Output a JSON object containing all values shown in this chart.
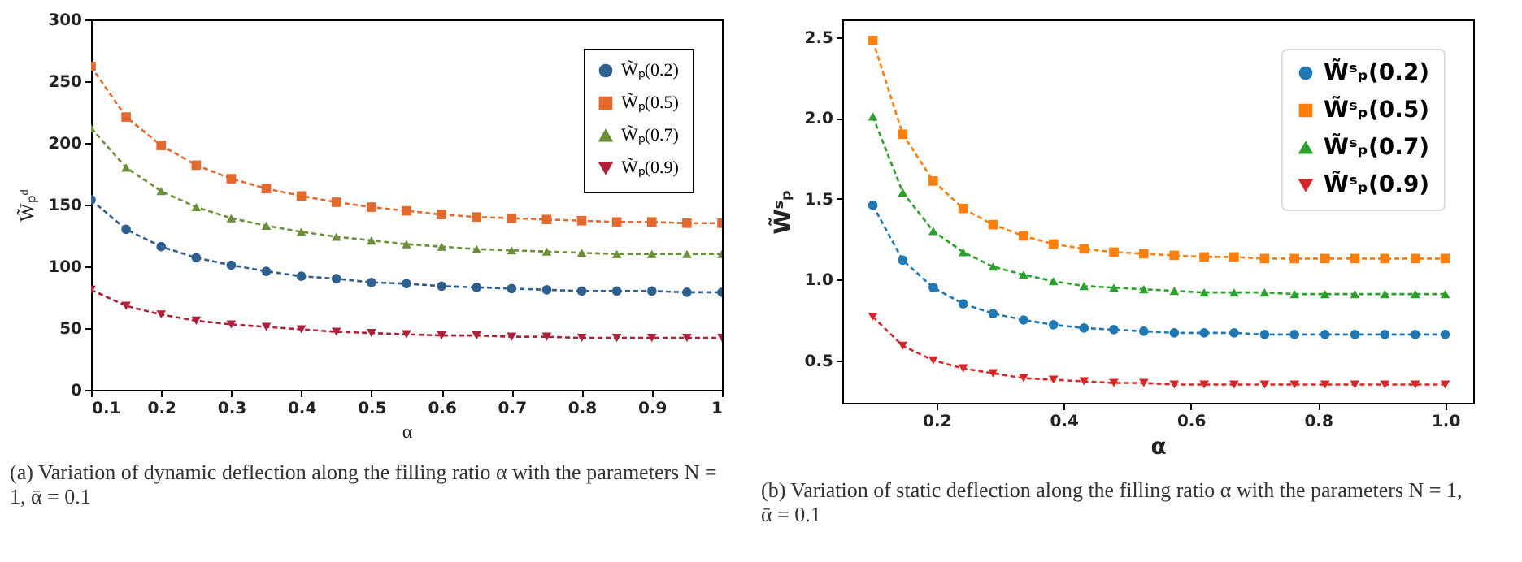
{
  "chart_data": [
    {
      "type": "line",
      "xlabel": "α",
      "ylabel": "W̃ₚᵈ",
      "xlim": [
        0.1,
        1
      ],
      "ylim": [
        0,
        300
      ],
      "xticks": [
        0.1,
        0.2,
        0.3,
        0.4,
        0.5,
        0.6,
        0.7,
        0.8,
        0.9,
        1
      ],
      "yticks": [
        0,
        50,
        100,
        150,
        200,
        250,
        300
      ],
      "legend": "top right",
      "line_style": "dashed",
      "x": [
        0.1,
        0.15,
        0.2,
        0.25,
        0.3,
        0.35,
        0.4,
        0.45,
        0.5,
        0.55,
        0.6,
        0.65,
        0.7,
        0.75,
        0.8,
        0.85,
        0.9,
        0.95,
        1
      ],
      "series": [
        {
          "name": "W̃ₚ(0.2)",
          "color": "#2f5f8f",
          "marker": "circle",
          "values": [
            154,
            130,
            116,
            107,
            101,
            96,
            92,
            90,
            87,
            86,
            84,
            83,
            82,
            81,
            80,
            80,
            80,
            79,
            79
          ]
        },
        {
          "name": "W̃ₚ(0.5)",
          "color": "#e36a2e",
          "marker": "square",
          "values": [
            262,
            221,
            198,
            182,
            171,
            163,
            157,
            152,
            148,
            145,
            142,
            140,
            139,
            138,
            137,
            136,
            136,
            135,
            135
          ]
        },
        {
          "name": "W̃ₚ(0.7)",
          "color": "#6b8e3a",
          "marker": "triangle",
          "values": [
            212,
            180,
            161,
            148,
            139,
            133,
            128,
            124,
            121,
            118,
            116,
            114,
            113,
            112,
            111,
            110,
            110,
            110,
            110
          ]
        },
        {
          "name": "W̃ₚ(0.9)",
          "color": "#b0203a",
          "marker": "triangle-down",
          "values": [
            81,
            68,
            61,
            56,
            53,
            51,
            49,
            47,
            46,
            45,
            44,
            44,
            43,
            43,
            42,
            42,
            42,
            42,
            42
          ]
        }
      ],
      "annotations": [
        "(a) Variation of dynamic deflection along the filling ratio α with the parameters N = 1, ᾱ = 0.1"
      ]
    },
    {
      "type": "line",
      "xlabel": "α",
      "ylabel": "W̃ˢₚ",
      "xlim": [
        0.052,
        1.044
      ],
      "ylim": [
        0.237,
        2.61
      ],
      "xticks": [
        0.2,
        0.4,
        0.6,
        0.8,
        {
          "value": 1,
          "label": "1.0"
        }
      ],
      "yticks": [
        0.5,
        {
          "value": 1,
          "label": "1.0"
        },
        1.5,
        {
          "value": 2,
          "label": "2.0"
        },
        2.5
      ],
      "legend": "top right",
      "line_style": "dashed",
      "x": [
        0.1,
        0.147,
        0.195,
        0.242,
        0.289,
        0.337,
        0.384,
        0.432,
        0.479,
        0.526,
        0.574,
        0.621,
        0.668,
        0.716,
        0.763,
        0.811,
        0.858,
        0.905,
        0.953,
        1.0
      ],
      "series": [
        {
          "name": "W̃ˢₚ(0.2)",
          "color": "#1f77b4",
          "marker": "circle",
          "values": [
            1.46,
            1.12,
            0.95,
            0.85,
            0.79,
            0.75,
            0.72,
            0.7,
            0.69,
            0.68,
            0.67,
            0.67,
            0.67,
            0.66,
            0.66,
            0.66,
            0.66,
            0.66,
            0.66,
            0.66
          ]
        },
        {
          "name": "W̃ˢₚ(0.5)",
          "color": "#ff7f0e",
          "marker": "square",
          "values": [
            2.48,
            1.9,
            1.61,
            1.44,
            1.34,
            1.27,
            1.22,
            1.19,
            1.17,
            1.16,
            1.15,
            1.14,
            1.14,
            1.13,
            1.13,
            1.13,
            1.13,
            1.13,
            1.13,
            1.13
          ]
        },
        {
          "name": "W̃ˢₚ(0.7)",
          "color": "#2ca02c",
          "marker": "triangle",
          "values": [
            2.01,
            1.54,
            1.3,
            1.17,
            1.08,
            1.03,
            0.99,
            0.96,
            0.95,
            0.94,
            0.93,
            0.92,
            0.92,
            0.92,
            0.91,
            0.91,
            0.91,
            0.91,
            0.91,
            0.91
          ]
        },
        {
          "name": "W̃ˢₚ(0.9)",
          "color": "#d62728",
          "marker": "triangle-down",
          "values": [
            0.77,
            0.59,
            0.5,
            0.45,
            0.42,
            0.39,
            0.38,
            0.37,
            0.36,
            0.36,
            0.35,
            0.35,
            0.35,
            0.35,
            0.35,
            0.35,
            0.35,
            0.35,
            0.35,
            0.35
          ]
        }
      ],
      "annotations": [
        "(b) Variation of static deflection along the filling ratio α with the parameters N = 1, ᾱ = 0.1"
      ]
    }
  ]
}
